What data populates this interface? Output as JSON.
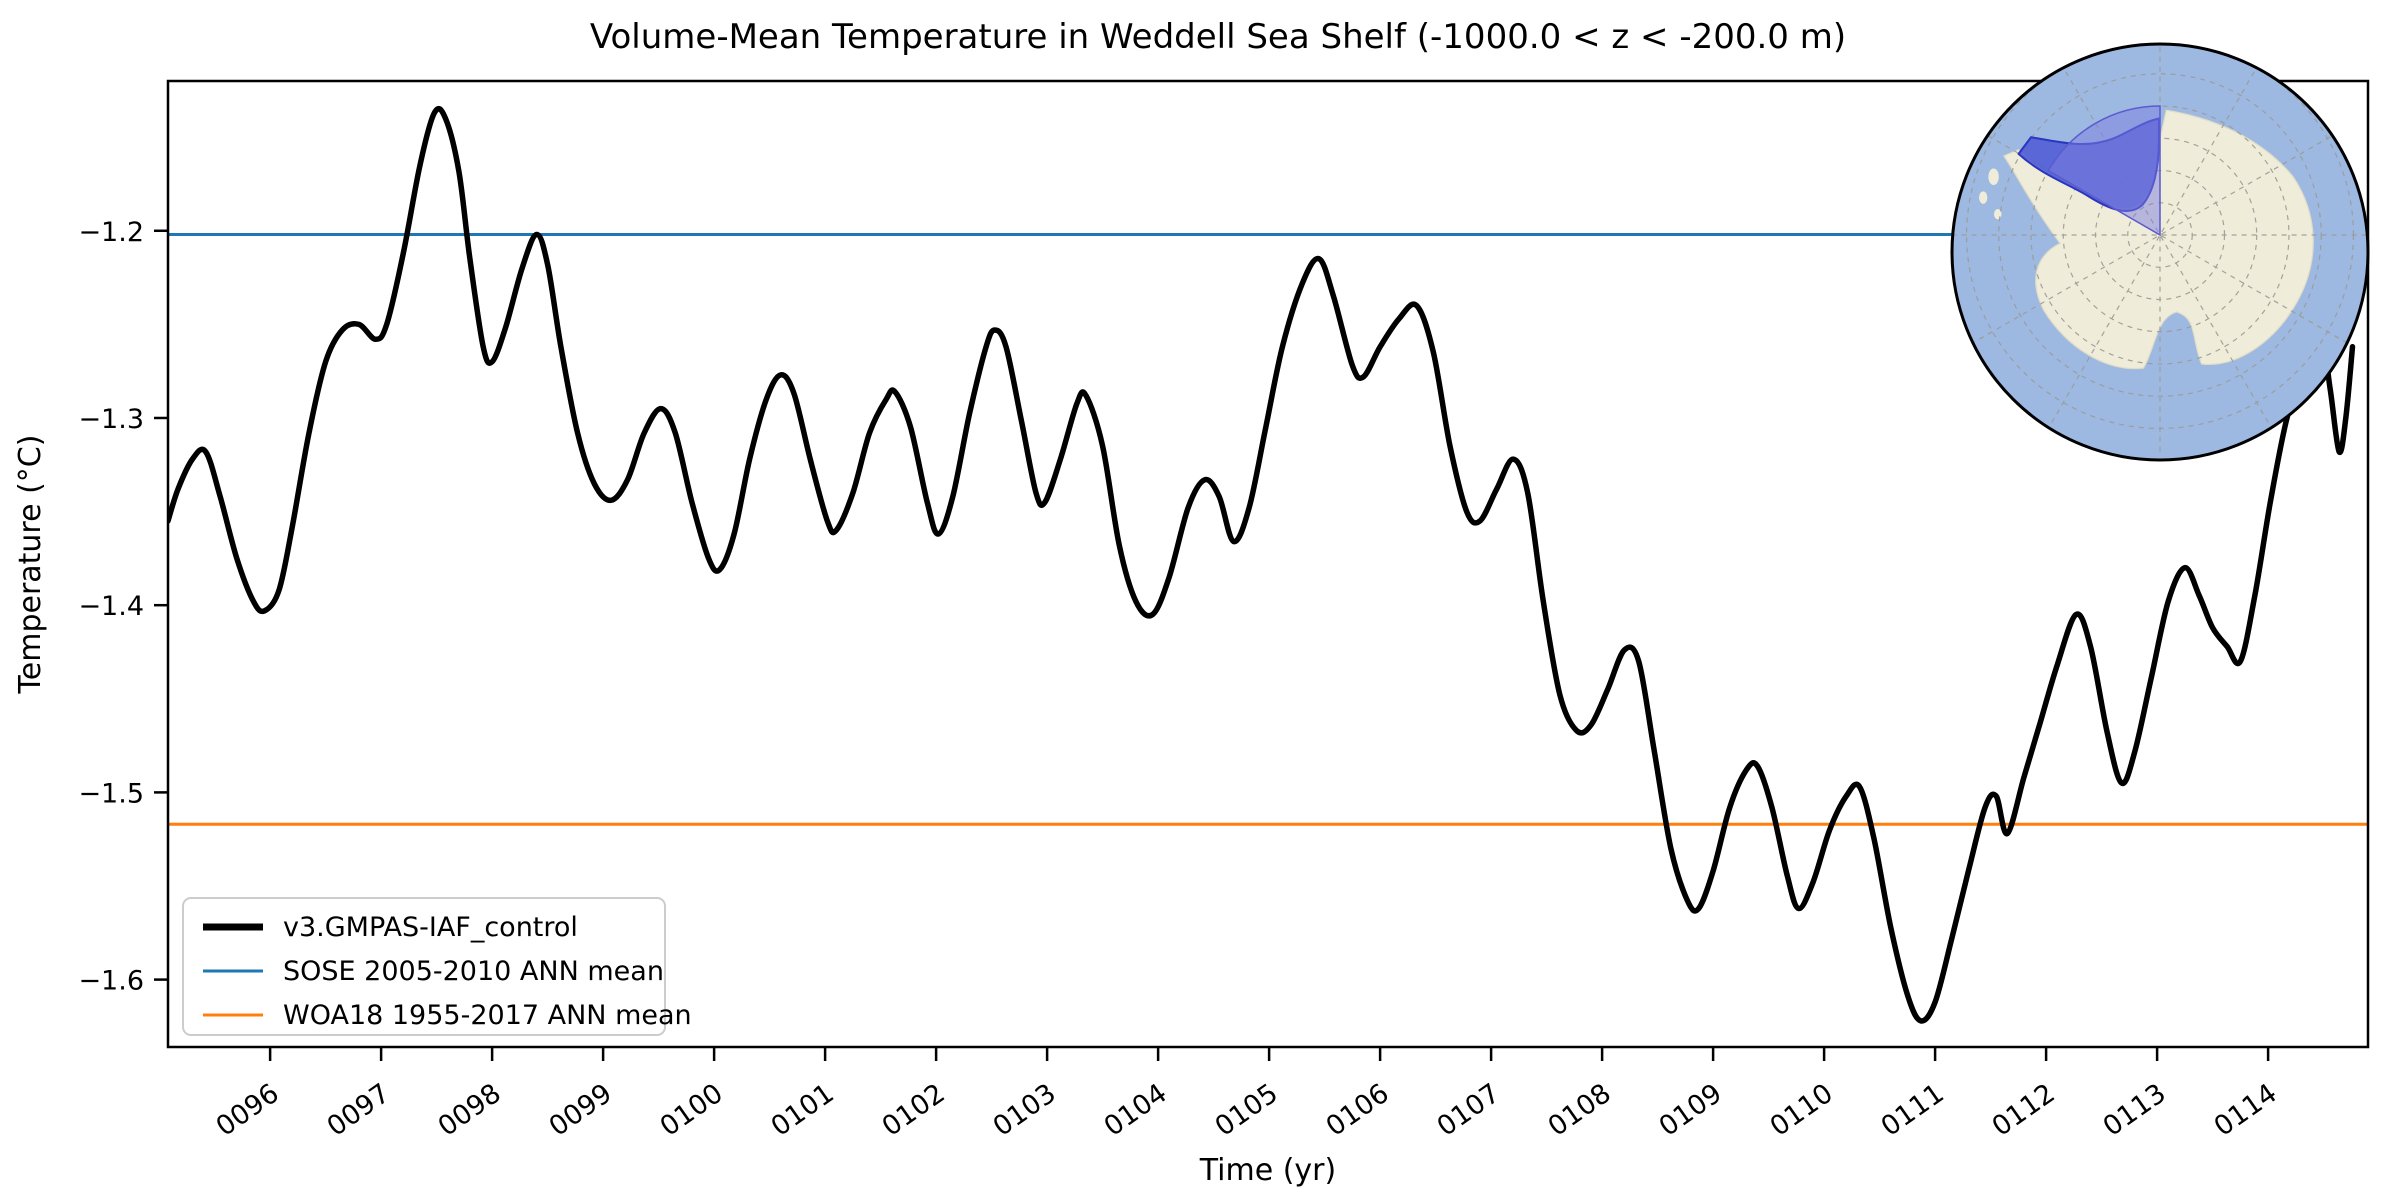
{
  "title": "Volume-Mean Temperature in Weddell Sea Shelf (-1000.0 < z < -200.0 m)",
  "axes": {
    "xlabel": "Time (yr)",
    "ylabel": "Temperature (°C)",
    "x_tick_labels": [
      "0096",
      "0097",
      "0098",
      "0099",
      "0100",
      "0101",
      "0102",
      "0103",
      "0104",
      "0105",
      "0106",
      "0107",
      "0108",
      "0109",
      "0110",
      "0111",
      "0112",
      "0113",
      "0114"
    ],
    "x_tick_values": [
      96,
      97,
      98,
      99,
      100,
      101,
      102,
      103,
      104,
      105,
      106,
      107,
      108,
      109,
      110,
      111,
      112,
      113,
      114
    ],
    "y_tick_labels": [
      "−1.2",
      "−1.3",
      "−1.4",
      "−1.5",
      "−1.6"
    ],
    "y_tick_values": [
      -1.2,
      -1.3,
      -1.4,
      -1.5,
      -1.6
    ]
  },
  "legend": {
    "entries": [
      {
        "label": "v3.GMPAS-IAF_control",
        "color": "#000000",
        "lw": 7
      },
      {
        "label": "SOSE 2005-2010 ANN mean",
        "color": "#1f77b4",
        "lw": 3
      },
      {
        "label": "WOA18 1955-2017 ANN mean",
        "color": "#ff7f0e",
        "lw": 3
      }
    ]
  },
  "colors": {
    "series": "#000000",
    "sose_line": "#1f77b4",
    "woa_line": "#ff7f0e",
    "map_ocean": "#9db9e2",
    "map_land": "#efecd9",
    "map_graticule": "#9b9b94",
    "map_shelf_fill": "#4d59d4",
    "map_shelf_edge": "#2b36c0",
    "map_wedge_fill": "#7d7ddd"
  },
  "inset_map": {
    "name": "antarctica-south-polar-inset",
    "highlight": "Weddell Sea shelf region"
  },
  "chart_data": {
    "type": "line",
    "title": "Volume-Mean Temperature in Weddell Sea Shelf (-1000.0 < z < -200.0 m)",
    "xlabel": "Time (yr)",
    "ylabel": "Temperature (°C)",
    "xlim": [
      95.08,
      114.9
    ],
    "ylim": [
      -1.636,
      -1.12
    ],
    "grid": false,
    "legend_position": "lower left",
    "series": [
      {
        "name": "v3.GMPAS-IAF_control",
        "type": "line",
        "color": "#000000",
        "points": [
          [
            95.08,
            -1.355
          ],
          [
            95.17,
            -1.338
          ],
          [
            95.3,
            -1.322
          ],
          [
            95.42,
            -1.318
          ],
          [
            95.55,
            -1.342
          ],
          [
            95.7,
            -1.375
          ],
          [
            95.85,
            -1.398
          ],
          [
            95.95,
            -1.403
          ],
          [
            96.08,
            -1.392
          ],
          [
            96.2,
            -1.358
          ],
          [
            96.35,
            -1.308
          ],
          [
            96.5,
            -1.27
          ],
          [
            96.65,
            -1.253
          ],
          [
            96.8,
            -1.25
          ],
          [
            96.95,
            -1.258
          ],
          [
            97.05,
            -1.25
          ],
          [
            97.2,
            -1.212
          ],
          [
            97.35,
            -1.165
          ],
          [
            97.48,
            -1.137
          ],
          [
            97.58,
            -1.14
          ],
          [
            97.7,
            -1.168
          ],
          [
            97.8,
            -1.215
          ],
          [
            97.92,
            -1.262
          ],
          [
            98.0,
            -1.27
          ],
          [
            98.12,
            -1.252
          ],
          [
            98.27,
            -1.22
          ],
          [
            98.4,
            -1.202
          ],
          [
            98.5,
            -1.218
          ],
          [
            98.62,
            -1.262
          ],
          [
            98.77,
            -1.308
          ],
          [
            98.92,
            -1.335
          ],
          [
            99.07,
            -1.344
          ],
          [
            99.22,
            -1.333
          ],
          [
            99.37,
            -1.308
          ],
          [
            99.52,
            -1.295
          ],
          [
            99.65,
            -1.308
          ],
          [
            99.8,
            -1.345
          ],
          [
            99.95,
            -1.375
          ],
          [
            100.05,
            -1.381
          ],
          [
            100.18,
            -1.362
          ],
          [
            100.32,
            -1.322
          ],
          [
            100.47,
            -1.29
          ],
          [
            100.6,
            -1.277
          ],
          [
            100.72,
            -1.287
          ],
          [
            100.87,
            -1.323
          ],
          [
            101.02,
            -1.355
          ],
          [
            101.1,
            -1.36
          ],
          [
            101.25,
            -1.34
          ],
          [
            101.4,
            -1.308
          ],
          [
            101.55,
            -1.29
          ],
          [
            101.63,
            -1.286
          ],
          [
            101.77,
            -1.305
          ],
          [
            101.92,
            -1.345
          ],
          [
            102.02,
            -1.362
          ],
          [
            102.15,
            -1.342
          ],
          [
            102.3,
            -1.298
          ],
          [
            102.45,
            -1.262
          ],
          [
            102.53,
            -1.253
          ],
          [
            102.63,
            -1.262
          ],
          [
            102.77,
            -1.302
          ],
          [
            102.9,
            -1.34
          ],
          [
            102.98,
            -1.345
          ],
          [
            103.12,
            -1.322
          ],
          [
            103.27,
            -1.292
          ],
          [
            103.35,
            -1.288
          ],
          [
            103.5,
            -1.315
          ],
          [
            103.65,
            -1.368
          ],
          [
            103.8,
            -1.398
          ],
          [
            103.95,
            -1.405
          ],
          [
            104.1,
            -1.385
          ],
          [
            104.27,
            -1.348
          ],
          [
            104.42,
            -1.333
          ],
          [
            104.55,
            -1.342
          ],
          [
            104.68,
            -1.366
          ],
          [
            104.82,
            -1.348
          ],
          [
            104.97,
            -1.305
          ],
          [
            105.12,
            -1.262
          ],
          [
            105.3,
            -1.228
          ],
          [
            105.45,
            -1.215
          ],
          [
            105.58,
            -1.235
          ],
          [
            105.75,
            -1.272
          ],
          [
            105.85,
            -1.278
          ],
          [
            106.0,
            -1.262
          ],
          [
            106.17,
            -1.247
          ],
          [
            106.33,
            -1.24
          ],
          [
            106.48,
            -1.265
          ],
          [
            106.63,
            -1.315
          ],
          [
            106.78,
            -1.35
          ],
          [
            106.9,
            -1.355
          ],
          [
            107.05,
            -1.338
          ],
          [
            107.2,
            -1.322
          ],
          [
            107.33,
            -1.34
          ],
          [
            107.47,
            -1.398
          ],
          [
            107.62,
            -1.448
          ],
          [
            107.77,
            -1.467
          ],
          [
            107.9,
            -1.464
          ],
          [
            108.05,
            -1.445
          ],
          [
            108.2,
            -1.424
          ],
          [
            108.33,
            -1.43
          ],
          [
            108.47,
            -1.478
          ],
          [
            108.62,
            -1.53
          ],
          [
            108.77,
            -1.558
          ],
          [
            108.87,
            -1.562
          ],
          [
            109.0,
            -1.542
          ],
          [
            109.15,
            -1.508
          ],
          [
            109.3,
            -1.488
          ],
          [
            109.4,
            -1.486
          ],
          [
            109.53,
            -1.508
          ],
          [
            109.67,
            -1.545
          ],
          [
            109.77,
            -1.562
          ],
          [
            109.9,
            -1.548
          ],
          [
            110.05,
            -1.52
          ],
          [
            110.2,
            -1.502
          ],
          [
            110.32,
            -1.497
          ],
          [
            110.45,
            -1.525
          ],
          [
            110.6,
            -1.572
          ],
          [
            110.75,
            -1.608
          ],
          [
            110.87,
            -1.622
          ],
          [
            111.0,
            -1.612
          ],
          [
            111.15,
            -1.578
          ],
          [
            111.3,
            -1.542
          ],
          [
            111.45,
            -1.508
          ],
          [
            111.55,
            -1.502
          ],
          [
            111.65,
            -1.522
          ],
          [
            111.8,
            -1.492
          ],
          [
            111.95,
            -1.462
          ],
          [
            112.1,
            -1.432
          ],
          [
            112.27,
            -1.405
          ],
          [
            112.4,
            -1.422
          ],
          [
            112.55,
            -1.468
          ],
          [
            112.68,
            -1.495
          ],
          [
            112.8,
            -1.478
          ],
          [
            112.95,
            -1.438
          ],
          [
            113.1,
            -1.398
          ],
          [
            113.25,
            -1.38
          ],
          [
            113.38,
            -1.395
          ],
          [
            113.5,
            -1.412
          ],
          [
            113.63,
            -1.422
          ],
          [
            113.75,
            -1.43
          ],
          [
            113.88,
            -1.395
          ],
          [
            114.02,
            -1.345
          ],
          [
            114.17,
            -1.3
          ],
          [
            114.33,
            -1.272
          ],
          [
            114.48,
            -1.258
          ],
          [
            114.56,
            -1.285
          ],
          [
            114.64,
            -1.318
          ],
          [
            114.7,
            -1.3
          ],
          [
            114.76,
            -1.262
          ]
        ]
      },
      {
        "name": "SOSE 2005-2010 ANN mean",
        "type": "hline",
        "y": -1.202,
        "color": "#1f77b4"
      },
      {
        "name": "WOA18 1955-2017 ANN mean",
        "type": "hline",
        "y": -1.517,
        "color": "#ff7f0e"
      }
    ]
  }
}
